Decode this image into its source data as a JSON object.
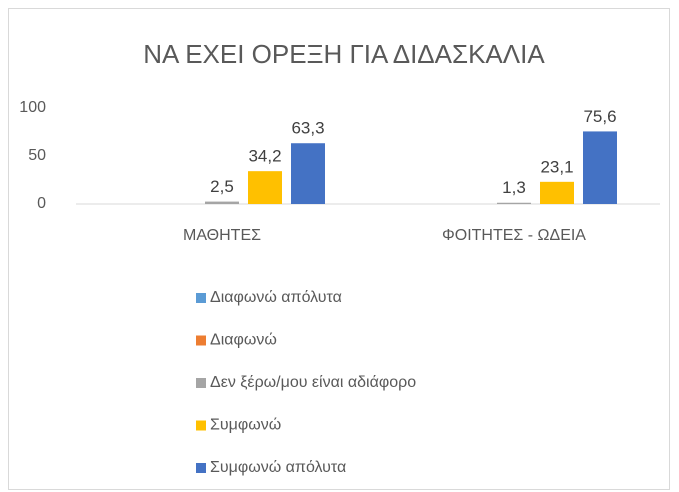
{
  "chart_data": {
    "type": "bar",
    "title": "ΝΑ ΕΧΕΙ ΟΡΕΞΗ ΓΙΑ ΔΙΔΑΣΚΑΛΙΑ",
    "categories": [
      "ΜΑΘΗΤΕΣ",
      "ΦΟΙΤΗΤΕΣ - ΩΔΕΙΑ"
    ],
    "series": [
      {
        "name": "Διαφωνώ απόλυτα",
        "color": "#5b9bd5",
        "values": [
          null,
          null
        ]
      },
      {
        "name": "Διαφωνώ",
        "color": "#ed7d31",
        "values": [
          null,
          null
        ]
      },
      {
        "name": "Δεν ξέρω/μου είναι αδιάφορο",
        "color": "#a5a5a5",
        "values": [
          2.5,
          1.3
        ],
        "value_labels": [
          "2,5",
          "1,3"
        ]
      },
      {
        "name": "Συμφωνώ",
        "color": "#ffc000",
        "values": [
          34.2,
          23.1
        ],
        "value_labels": [
          "34,2",
          "23,1"
        ]
      },
      {
        "name": "Συμφωνώ απόλυτα",
        "color": "#4472c4",
        "values": [
          63.3,
          75.6
        ],
        "value_labels": [
          "63,3",
          "75,6"
        ]
      }
    ],
    "ylim": [
      0,
      100
    ],
    "yticks": [
      0,
      50,
      100
    ],
    "grid": false,
    "legend": "bottom"
  }
}
